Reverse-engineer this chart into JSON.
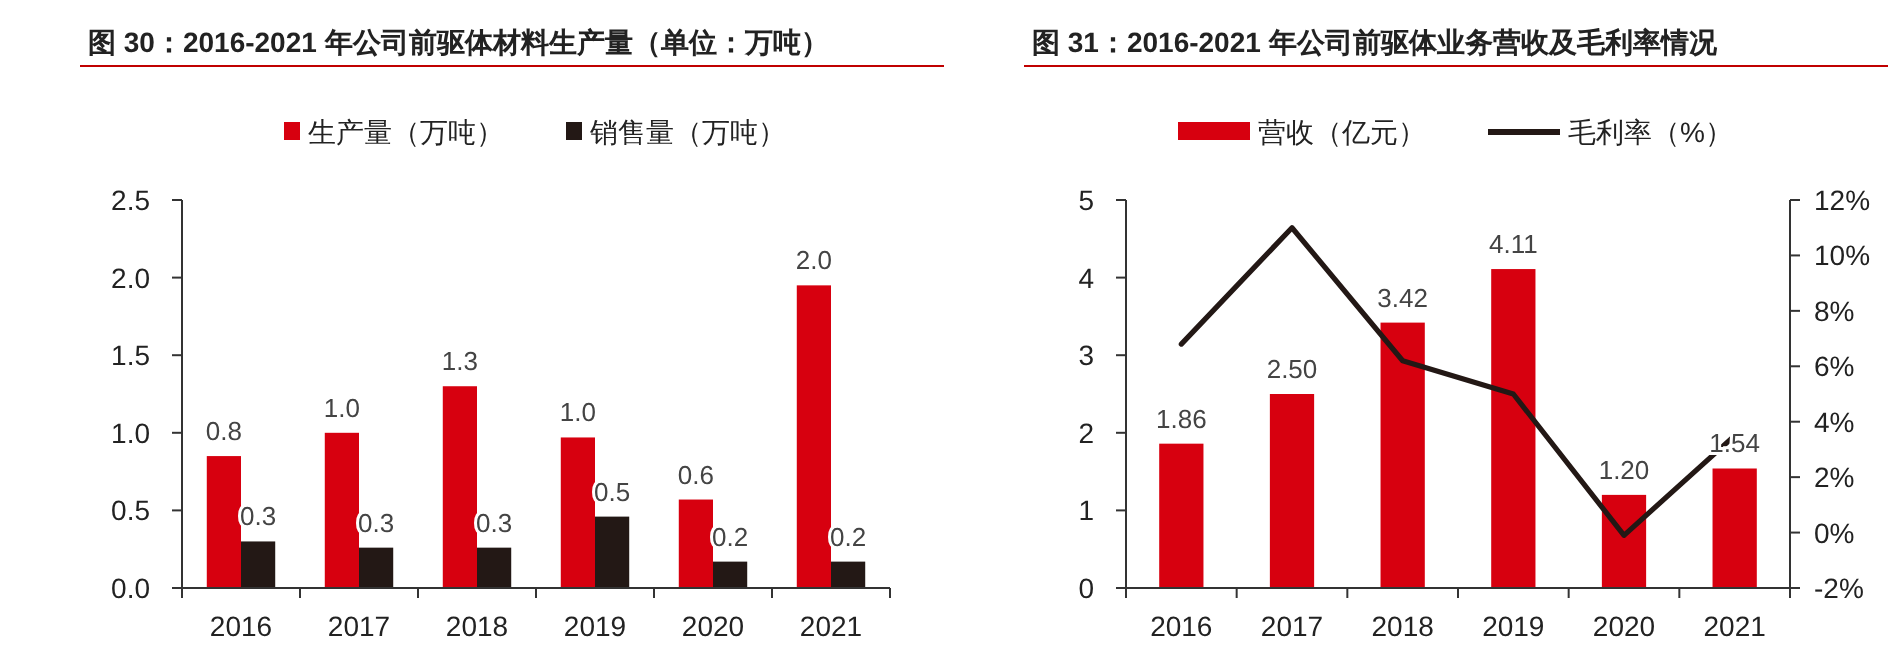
{
  "chart_data": [
    {
      "type": "bar",
      "title": "图 30：2016-2021 年公司前驱体材料生产量（单位：万吨）",
      "categories": [
        "2016",
        "2017",
        "2018",
        "2019",
        "2020",
        "2021"
      ],
      "series": [
        {
          "name": "生产量（万吨）",
          "color": "#d7000f",
          "values": [
            0.85,
            1.0,
            1.3,
            0.97,
            0.57,
            1.95
          ],
          "value_labels": [
            "0.8",
            "1.0",
            "1.3",
            "1.0",
            "0.6",
            "2.0"
          ]
        },
        {
          "name": "销售量（万吨）",
          "color": "#231815",
          "values": [
            0.3,
            0.26,
            0.26,
            0.46,
            0.17,
            0.17
          ],
          "value_labels": [
            "0.3",
            "0.3",
            "0.3",
            "0.5",
            "0.2",
            "0.2"
          ]
        }
      ],
      "ylim": [
        0,
        2.5
      ],
      "yticks": [
        {
          "value": 0,
          "label": "0.0"
        },
        {
          "value": 0.5,
          "label": "0.5"
        },
        {
          "value": 1,
          "label": "1.0"
        },
        {
          "value": 1.5,
          "label": "1.5"
        },
        {
          "value": 2,
          "label": "2.0"
        },
        {
          "value": 2.5,
          "label": "2.5"
        }
      ],
      "legend": "top",
      "grid": false
    },
    {
      "type": "bar",
      "title": "图 31：2016-2021 年公司前驱体业务营收及毛利率情况",
      "categories": [
        "2016",
        "2017",
        "2018",
        "2019",
        "2020",
        "2021"
      ],
      "series": [
        {
          "name": "营收（亿元）",
          "color": "#d7000f",
          "values": [
            1.86,
            2.5,
            3.42,
            4.11,
            1.2,
            1.54
          ],
          "value_labels": [
            "1.86",
            "2.50",
            "3.42",
            "4.11",
            "1.20",
            "1.54"
          ]
        },
        {
          "name": "毛利率（%）",
          "type": "line",
          "axis": "y2",
          "color": "#231815",
          "values": [
            6.8,
            11.0,
            6.2,
            5.0,
            -0.1,
            3.5
          ]
        }
      ],
      "ylim": [
        0,
        5
      ],
      "yticks": [
        0,
        1,
        2,
        3,
        4,
        5
      ],
      "y2lim": [
        -2,
        12
      ],
      "y2ticks": [
        {
          "value": -2,
          "label": "-2%"
        },
        {
          "value": 0,
          "label": "0%"
        },
        {
          "value": 2,
          "label": "2%"
        },
        {
          "value": 4,
          "label": "4%"
        },
        {
          "value": 6,
          "label": "6%"
        },
        {
          "value": 8,
          "label": "8%"
        },
        {
          "value": 10,
          "label": "10%"
        },
        {
          "value": 12,
          "label": "12%"
        }
      ],
      "legend": "top",
      "grid": false,
      "marker": "none"
    }
  ]
}
